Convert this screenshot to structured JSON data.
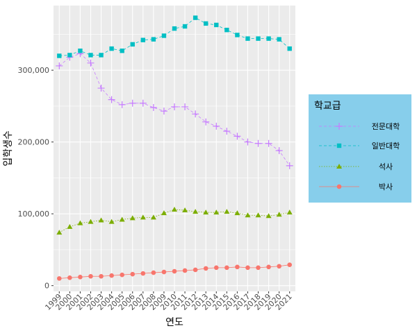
{
  "chart_data": {
    "type": "line",
    "xlabel": "연도",
    "ylabel": "입학생수",
    "x": [
      "1999",
      "2000",
      "2001",
      "2002",
      "2003",
      "2004",
      "2005",
      "2006",
      "2007",
      "2008",
      "2009",
      "2010",
      "2011",
      "2012",
      "2013",
      "2014",
      "2015",
      "2016",
      "2017",
      "2018",
      "2019",
      "2020",
      "2021"
    ],
    "ylim": [
      -8000,
      390000
    ],
    "y_ticks": [
      0,
      100000,
      200000,
      300000
    ],
    "y_tick_labels": [
      "0",
      "100,000",
      "200,000",
      "300,000"
    ],
    "grid": true,
    "legend": {
      "title": "학교급",
      "position": "right"
    },
    "series": [
      {
        "name": "전문대학",
        "color": "#C77CFF",
        "marker": "plus",
        "line": "dashed",
        "values": [
          306000,
          318000,
          323000,
          310000,
          275000,
          259000,
          252000,
          254000,
          254000,
          248000,
          243000,
          249000,
          249000,
          239000,
          228000,
          222000,
          215000,
          208000,
          200000,
          198000,
          198000,
          188000,
          167000
        ]
      },
      {
        "name": "일반대학",
        "color": "#00BFC4",
        "marker": "square",
        "line": "dashed",
        "values": [
          320000,
          321000,
          327000,
          321000,
          321000,
          330000,
          327000,
          336000,
          342000,
          343000,
          348000,
          358000,
          361000,
          373000,
          365000,
          363000,
          356000,
          349000,
          344000,
          344000,
          344000,
          343000,
          330000
        ]
      },
      {
        "name": "석사",
        "color": "#7CAE00",
        "marker": "triangle",
        "line": "dotted",
        "values": [
          74000,
          82000,
          87000,
          89000,
          91000,
          89000,
          92000,
          94000,
          95000,
          95000,
          101000,
          106000,
          105000,
          103000,
          102000,
          102000,
          103000,
          101000,
          98000,
          98000,
          97000,
          99000,
          102000
        ]
      },
      {
        "name": "박사",
        "color": "#F8766D",
        "marker": "circle",
        "line": "solid",
        "values": [
          10000,
          11000,
          12000,
          13000,
          13000,
          14000,
          15000,
          16000,
          17000,
          18000,
          19000,
          20000,
          21000,
          22000,
          24000,
          25000,
          25000,
          26000,
          25000,
          25000,
          26000,
          27000,
          29000
        ]
      }
    ]
  }
}
